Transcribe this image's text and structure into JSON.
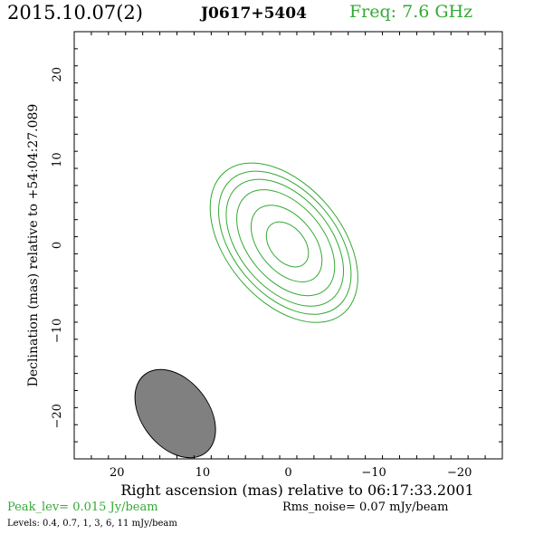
{
  "header": {
    "date": "2015.10.07(2)",
    "source": "J0617+5404",
    "freq_label": "Freq: 7.6 GHz"
  },
  "footer": {
    "peak": "Peak_lev=  0.015 Jy/beam",
    "rms": "Rms_noise= 0.07 mJy/beam",
    "levels": "Levels: 0.4, 0.7,   1,   3,   6,  11 mJy/beam"
  },
  "colors": {
    "contour": "#33aa33",
    "beam_fill": "#808080",
    "axis": "#000000"
  },
  "chart_data": {
    "type": "contour",
    "xlabel": "Right ascension (mas) relative to 06:17:33.2001",
    "ylabel": "Declination (mas) relative to +54:04:27.089",
    "xlim": [
      25,
      -25
    ],
    "ylim": [
      -25,
      25
    ],
    "xticks": [
      20,
      10,
      0,
      -10,
      -20
    ],
    "xtick_labels": [
      "20",
      "10",
      "0",
      "−10",
      "−20"
    ],
    "yticks": [
      20,
      10,
      0,
      -10,
      -20
    ],
    "ytick_labels": [
      "20",
      "10",
      "0",
      "−10",
      "−20"
    ],
    "contour_levels_mJy": [
      0.4,
      0.7,
      1,
      3,
      6,
      11
    ],
    "contours": [
      {
        "level": 0.4,
        "cx": 0.5,
        "cy": 0.3,
        "major": 10.8,
        "minor": 6.7,
        "angle_deg": -40
      },
      {
        "level": 0.7,
        "cx": 0.4,
        "cy": 0.3,
        "major": 9.7,
        "minor": 6.0,
        "angle_deg": -40
      },
      {
        "level": 1,
        "cx": 0.4,
        "cy": 0.3,
        "major": 8.6,
        "minor": 5.3,
        "angle_deg": -40
      },
      {
        "level": 3,
        "cx": 0.3,
        "cy": 0.3,
        "major": 7.2,
        "minor": 4.4,
        "angle_deg": -40
      },
      {
        "level": 6,
        "cx": 0.2,
        "cy": 0.2,
        "major": 5.2,
        "minor": 3.2,
        "angle_deg": -40
      },
      {
        "level": 11,
        "cx": 0.1,
        "cy": 0.1,
        "major": 3.0,
        "minor": 2.0,
        "angle_deg": -40
      }
    ],
    "beam": {
      "cx": 13.2,
      "cy": -19.7,
      "major": 5.8,
      "minor": 3.9,
      "angle_deg": -38
    }
  }
}
